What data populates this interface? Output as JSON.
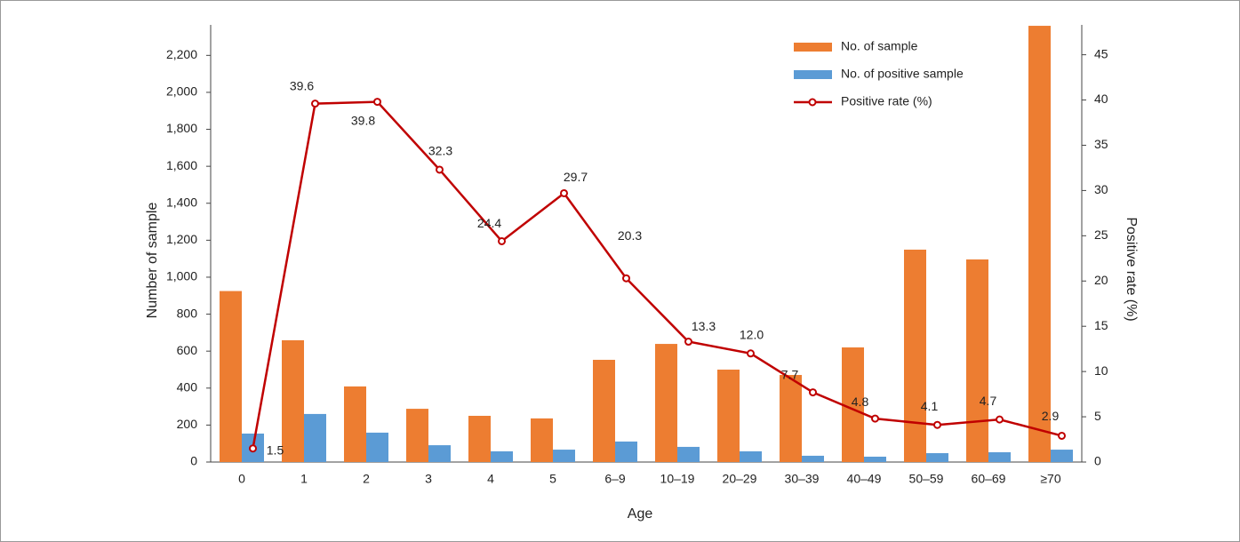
{
  "chart_data": {
    "type": "bar",
    "x_label": "Age",
    "y_label": "Number of sample",
    "y2_label": "Positive rate (%)",
    "categories": [
      "0",
      "1",
      "2",
      "3",
      "4",
      "5",
      "6–9",
      "10–19",
      "20–29",
      "30–39",
      "40–49",
      "50–59",
      "60–69",
      "≥70"
    ],
    "series": [
      {
        "name": "No. of sample",
        "type": "bar",
        "color": "#ed7d31",
        "values": [
          925,
          659,
          409,
          288,
          250,
          236,
          553,
          639,
          500,
          471,
          620,
          1149,
          1096,
          2360
        ]
      },
      {
        "name": "No. of positive sample",
        "type": "bar",
        "color": "#5b9bd5",
        "values": [
          154,
          260,
          159,
          91,
          58,
          67,
          111,
          82,
          58,
          34,
          29,
          48,
          53,
          67
        ]
      },
      {
        "name": "Positive  rate (%)",
        "type": "line",
        "axis": "y2",
        "color": "#c00000",
        "values": [
          1.5,
          39.6,
          39.8,
          32.3,
          24.4,
          29.7,
          20.3,
          13.3,
          12.0,
          7.7,
          4.8,
          4.1,
          4.7,
          2.9
        ],
        "value_labels": [
          "1.5",
          "39.6",
          "39.8",
          "32.3",
          "24.4",
          "29.7",
          "20.3",
          "13.3",
          "12.0",
          "7.7",
          "4.8",
          "4.1",
          "4.7",
          "2.9"
        ]
      }
    ],
    "ylim": [
      0,
      2365
    ],
    "yticks": [
      0,
      200,
      400,
      600,
      800,
      {
        "value": 1000,
        "label": "1,000"
      },
      {
        "value": 1200,
        "label": "1,200"
      },
      {
        "value": 1400,
        "label": "1,400"
      },
      {
        "value": 1600,
        "label": "1,600"
      },
      {
        "value": 1800,
        "label": "1,800"
      },
      {
        "value": 2000,
        "label": "2,000"
      },
      {
        "value": 2200,
        "label": "2,200"
      }
    ],
    "y2lim": [
      0,
      48.3
    ],
    "y2ticks": [
      0,
      5,
      10,
      15,
      20,
      25,
      30,
      35,
      40,
      45
    ],
    "legend": "top-right",
    "grid": false
  }
}
